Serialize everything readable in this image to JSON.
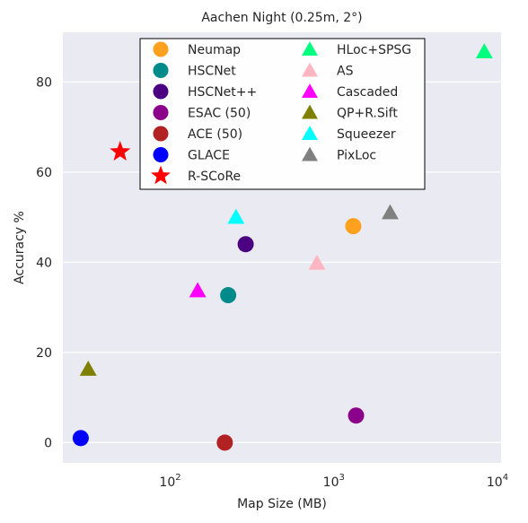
{
  "chart_data": {
    "type": "scatter",
    "title": "Aachen Night (0.25m, 2°)",
    "xlabel": "Map Size (MB)",
    "ylabel": "Accuracy %",
    "x_scale": "log",
    "xlim": [
      21,
      10000
    ],
    "ylim": [
      -4.5,
      91
    ],
    "x_ticks": [
      {
        "value": 100,
        "base": "10",
        "exp": "2"
      },
      {
        "value": 1000,
        "base": "10",
        "exp": "3"
      },
      {
        "value": 10000,
        "base": "10",
        "exp": "4"
      }
    ],
    "y_ticks": [
      0,
      20,
      40,
      60,
      80
    ],
    "grid": true,
    "legend_position": "top-center",
    "legend_columns": 2,
    "series": [
      {
        "name": "Neumap",
        "marker": "circle",
        "color": "#ffa01e",
        "points": [
          {
            "x": 1250,
            "y": 48
          }
        ]
      },
      {
        "name": "HSCNet",
        "marker": "circle",
        "color": "#008b8b",
        "points": [
          {
            "x": 215,
            "y": 32.7
          }
        ]
      },
      {
        "name": "HSCNet++",
        "marker": "circle",
        "color": "#4b0082",
        "points": [
          {
            "x": 275,
            "y": 44
          }
        ]
      },
      {
        "name": "ESAC (50)",
        "marker": "circle",
        "color": "#8b008b",
        "points": [
          {
            "x": 1300,
            "y": 6
          }
        ]
      },
      {
        "name": "ACE (50)",
        "marker": "circle",
        "color": "#b22222",
        "points": [
          {
            "x": 205,
            "y": 0
          }
        ]
      },
      {
        "name": "GLACE",
        "marker": "circle",
        "color": "#0000ff",
        "points": [
          {
            "x": 27,
            "y": 1
          }
        ]
      },
      {
        "name": "R-SCoRe",
        "marker": "star",
        "color": "#ff0000",
        "points": [
          {
            "x": 47,
            "y": 64.5
          }
        ]
      },
      {
        "name": "HLoc+SPSG",
        "marker": "triangle",
        "color": "#00ff7f",
        "points": [
          {
            "x": 7900,
            "y": 86.7
          }
        ]
      },
      {
        "name": "AS",
        "marker": "triangle",
        "color": "#ffb6c1",
        "points": [
          {
            "x": 750,
            "y": 39.8
          }
        ]
      },
      {
        "name": "Cascaded",
        "marker": "triangle",
        "color": "#ff00ff",
        "points": [
          {
            "x": 140,
            "y": 33.7
          }
        ]
      },
      {
        "name": "QP+R.Sift",
        "marker": "triangle",
        "color": "#808000",
        "points": [
          {
            "x": 30,
            "y": 16.3
          }
        ]
      },
      {
        "name": "Squeezer",
        "marker": "triangle",
        "color": "#00ffff",
        "points": [
          {
            "x": 240,
            "y": 50
          }
        ]
      },
      {
        "name": "PixLoc",
        "marker": "triangle",
        "color": "#808080",
        "points": [
          {
            "x": 2100,
            "y": 51
          }
        ]
      }
    ],
    "colors": {
      "plot_background": "#eaeaf2",
      "grid": "#ffffff",
      "text": "#262626"
    }
  }
}
